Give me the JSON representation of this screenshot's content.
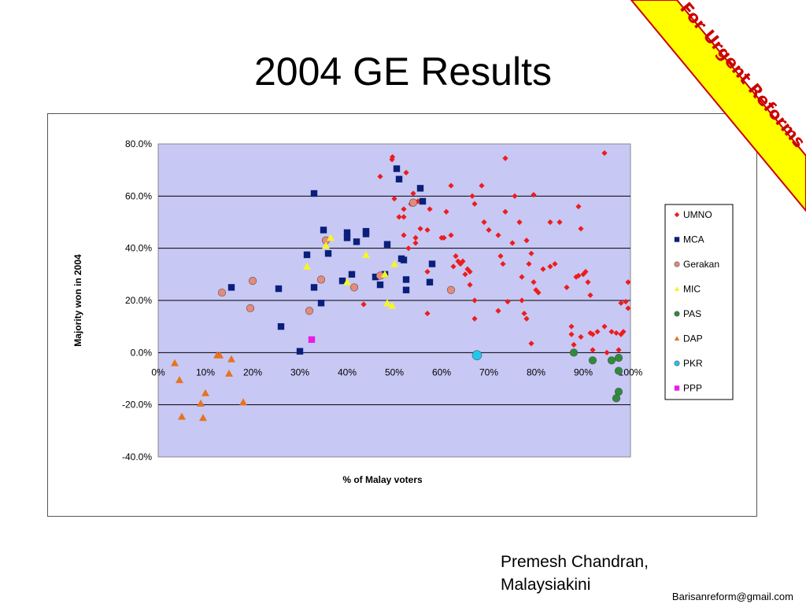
{
  "slide": {
    "title": "2004 GE Results",
    "banner_text": "For Urgent Reforms",
    "author_line1": "Premesh Chandran,",
    "author_line2": "Malaysiakini",
    "email": "Barisanreform@gmail.com"
  },
  "colors": {
    "UMNO": "#ee1c1c",
    "MCA": "#0a1f7a",
    "Gerakan": "#e68a7a",
    "MIC": "#f5f52a",
    "PAS": "#2e8b3c",
    "DAP": "#e8731f",
    "PKR": "#1ec8f0",
    "PPP": "#e61ee6",
    "plot_bg": "#c8c8f5",
    "banner_bg": "#ffff00",
    "banner_text": "#cc0000"
  },
  "chart_data": {
    "type": "scatter",
    "xlabel": "% of Malay voters",
    "ylabel": "Majority won in 2004",
    "xlim": [
      0,
      100
    ],
    "ylim": [
      -40,
      80
    ],
    "x_ticks": [
      "0%",
      "10%",
      "20%",
      "30%",
      "40%",
      "50%",
      "60%",
      "70%",
      "80%",
      "90%",
      "100%"
    ],
    "y_ticks": [
      "80.0%",
      "60.0%",
      "40.0%",
      "20.0%",
      "0.0%",
      "-20.0%",
      "-40.0%"
    ],
    "legend_position": "right",
    "grid": "horizontal",
    "series": [
      {
        "name": "UMNO",
        "marker": "diamond",
        "points": [
          [
            49.5,
            74
          ],
          [
            49.6,
            75
          ],
          [
            52.5,
            69
          ],
          [
            47,
            67.5
          ],
          [
            73.5,
            74.5
          ],
          [
            94.5,
            76.5
          ],
          [
            50,
            59
          ],
          [
            55,
            58
          ],
          [
            52,
            55
          ],
          [
            53.5,
            57
          ],
          [
            54,
            61
          ],
          [
            51,
            52
          ],
          [
            52,
            52
          ],
          [
            52,
            45
          ],
          [
            54.5,
            44
          ],
          [
            55.5,
            47.5
          ],
          [
            54.5,
            42
          ],
          [
            57,
            47
          ],
          [
            57.5,
            55
          ],
          [
            61,
            54
          ],
          [
            62,
            64
          ],
          [
            66.5,
            60
          ],
          [
            67,
            57
          ],
          [
            68.5,
            64
          ],
          [
            69,
            50
          ],
          [
            70,
            47
          ],
          [
            72,
            45
          ],
          [
            73.5,
            54
          ],
          [
            75.5,
            60
          ],
          [
            76.5,
            50
          ],
          [
            79.5,
            60.5
          ],
          [
            83,
            50
          ],
          [
            85,
            50
          ],
          [
            89,
            56
          ],
          [
            89.5,
            47.5
          ],
          [
            72.5,
            37
          ],
          [
            73,
            34
          ],
          [
            77,
            29
          ],
          [
            78,
            43
          ],
          [
            79,
            38
          ],
          [
            78.5,
            34
          ],
          [
            79.5,
            27
          ],
          [
            75,
            42
          ],
          [
            80,
            24
          ],
          [
            80.5,
            23
          ],
          [
            81.5,
            32
          ],
          [
            83,
            33
          ],
          [
            84,
            34
          ],
          [
            86.5,
            25
          ],
          [
            88.5,
            29
          ],
          [
            89,
            29.5
          ],
          [
            90,
            30
          ],
          [
            90.5,
            31
          ],
          [
            91,
            27
          ],
          [
            91.5,
            22
          ],
          [
            98,
            19
          ],
          [
            99,
            19.5
          ],
          [
            99.5,
            27
          ],
          [
            99.5,
            17
          ],
          [
            62,
            45
          ],
          [
            62.5,
            33
          ],
          [
            63,
            37
          ],
          [
            63.5,
            35
          ],
          [
            64,
            34
          ],
          [
            64.5,
            35
          ],
          [
            65,
            30
          ],
          [
            65.5,
            32
          ],
          [
            66,
            31
          ],
          [
            66,
            26
          ],
          [
            67,
            20
          ],
          [
            67,
            13
          ],
          [
            72,
            16
          ],
          [
            74,
            19.5
          ],
          [
            77,
            20
          ],
          [
            77.5,
            15
          ],
          [
            78,
            13
          ],
          [
            79,
            3.5
          ],
          [
            87.5,
            10
          ],
          [
            87.5,
            7
          ],
          [
            88,
            3
          ],
          [
            89.5,
            6
          ],
          [
            91.5,
            7.5
          ],
          [
            92,
            7
          ],
          [
            92,
            1
          ],
          [
            93,
            8
          ],
          [
            94.5,
            10
          ],
          [
            95,
            0
          ],
          [
            96,
            8
          ],
          [
            97,
            7.5
          ],
          [
            97.5,
            1
          ],
          [
            98,
            7
          ],
          [
            98.5,
            8
          ],
          [
            57,
            31
          ],
          [
            57,
            15
          ],
          [
            53,
            40
          ],
          [
            43.5,
            18.5
          ],
          [
            60,
            44
          ],
          [
            60.5,
            44
          ]
        ]
      },
      {
        "name": "MCA",
        "marker": "square",
        "points": [
          [
            15.5,
            25
          ],
          [
            25.5,
            24.5
          ],
          [
            26,
            10
          ],
          [
            30,
            0.5
          ],
          [
            31.5,
            37.5
          ],
          [
            33,
            61
          ],
          [
            33,
            25
          ],
          [
            34.5,
            19
          ],
          [
            35,
            47
          ],
          [
            36,
            38
          ],
          [
            39,
            27.5
          ],
          [
            40,
            46
          ],
          [
            40,
            44
          ],
          [
            41,
            30
          ],
          [
            42,
            42.5
          ],
          [
            44,
            46.5
          ],
          [
            44,
            45.5
          ],
          [
            46,
            29
          ],
          [
            47,
            26
          ],
          [
            48,
            30
          ],
          [
            48.5,
            41.5
          ],
          [
            50.5,
            70.5
          ],
          [
            51,
            66.5
          ],
          [
            51.5,
            36
          ],
          [
            52,
            35.5
          ],
          [
            52.5,
            24
          ],
          [
            52.5,
            28
          ],
          [
            55.5,
            63
          ],
          [
            56,
            58
          ],
          [
            57.5,
            27
          ],
          [
            58,
            34
          ]
        ]
      },
      {
        "name": "Gerakan",
        "marker": "circle",
        "points": [
          [
            13.5,
            23
          ],
          [
            19.5,
            17
          ],
          [
            20,
            27.5
          ],
          [
            32,
            16
          ],
          [
            34.5,
            28
          ],
          [
            35.5,
            43
          ],
          [
            41.5,
            25
          ],
          [
            47,
            29.5
          ],
          [
            54,
            57.5
          ],
          [
            62,
            24
          ]
        ]
      },
      {
        "name": "MIC",
        "marker": "triangle",
        "points": [
          [
            31.5,
            33
          ],
          [
            35.5,
            41
          ],
          [
            36.5,
            44
          ],
          [
            44,
            37.5
          ],
          [
            40,
            27
          ],
          [
            48,
            30
          ],
          [
            48.5,
            19
          ],
          [
            49.5,
            18
          ],
          [
            50,
            34
          ]
        ]
      },
      {
        "name": "PAS",
        "marker": "circle",
        "points": [
          [
            88,
            0
          ],
          [
            92,
            -3
          ],
          [
            96,
            -3
          ],
          [
            97.5,
            -2
          ],
          [
            97.5,
            -7
          ],
          [
            97.5,
            -15
          ],
          [
            97,
            -17.5
          ]
        ]
      },
      {
        "name": "DAP",
        "marker": "triangle",
        "points": [
          [
            3.5,
            -4
          ],
          [
            4.5,
            -10.5
          ],
          [
            5,
            -24.5
          ],
          [
            9,
            -19.5
          ],
          [
            9.5,
            -25
          ],
          [
            10,
            -15.5
          ],
          [
            12.5,
            -1
          ],
          [
            13,
            -1
          ],
          [
            15,
            -8
          ],
          [
            15.5,
            -2.5
          ],
          [
            18,
            -19
          ]
        ]
      },
      {
        "name": "PKR",
        "marker": "circle",
        "points": [
          [
            67.5,
            -1
          ]
        ]
      },
      {
        "name": "PPP",
        "marker": "square",
        "points": [
          [
            32.5,
            5
          ]
        ]
      }
    ]
  }
}
